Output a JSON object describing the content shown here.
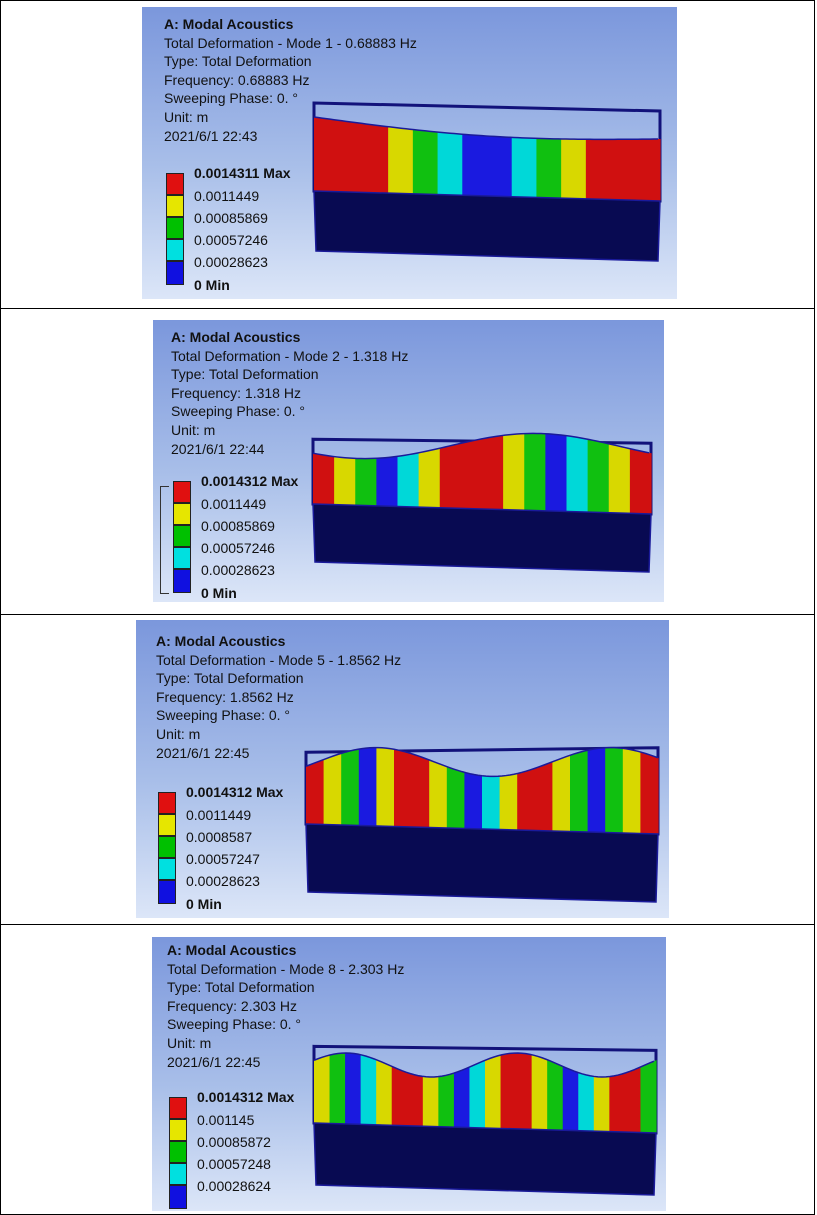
{
  "panels": [
    {
      "title": "A: Modal Acoustics",
      "subtitle": "Total Deformation - Mode 1 - 0.68883 Hz",
      "type_line": "Type: Total Deformation",
      "freq_line": "Frequency: 0.68883 Hz",
      "phase_line": "Sweeping Phase: 0. °",
      "unit_line": "Unit: m",
      "date_line": "2021/6/1 22:43",
      "legend": {
        "max_label": "0.0014311 Max",
        "values": [
          "0.0011449",
          "0.00085869",
          "0.00057246",
          "0.00028623"
        ],
        "min_label": "0 Min"
      },
      "colors": [
        "#e01010",
        "#e6e600",
        "#00c000",
        "#00e0e0",
        "#1010e0"
      ],
      "wave_stripes": [
        "#d01010",
        "#d01010",
        "#d01010",
        "#d8d800",
        "#10c010",
        "#00d8d8",
        "#1a1ae0",
        "#1a1ae0",
        "#00d8d8",
        "#10c010",
        "#d8d800",
        "#d01010",
        "#d01010",
        "#d01010"
      ]
    },
    {
      "title": "A: Modal Acoustics",
      "subtitle": "Total Deformation - Mode 2 - 1.318 Hz",
      "type_line": "Type: Total Deformation",
      "freq_line": "Frequency: 1.318 Hz",
      "phase_line": "Sweeping Phase: 0. °",
      "unit_line": "Unit: m",
      "date_line": "2021/6/1 22:44",
      "legend": {
        "max_label": "0.0014312 Max",
        "values": [
          "0.0011449",
          "0.00085869",
          "0.00057246",
          "0.00028623"
        ],
        "min_label": "0 Min"
      },
      "colors": [
        "#e01010",
        "#e6e600",
        "#00c000",
        "#00e0e0",
        "#1010e0"
      ],
      "wave_stripes": [
        "#d01010",
        "#d8d800",
        "#10c010",
        "#1a1ae0",
        "#00d8d8",
        "#d8d800",
        "#d01010",
        "#d01010",
        "#d01010",
        "#d8d800",
        "#10c010",
        "#1a1ae0",
        "#00d8d8",
        "#10c010",
        "#d8d800",
        "#d01010"
      ]
    },
    {
      "title": "A: Modal Acoustics",
      "subtitle": "Total Deformation - Mode 5 - 1.8562 Hz",
      "type_line": "Type: Total Deformation",
      "freq_line": "Frequency: 1.8562 Hz",
      "phase_line": "Sweeping Phase: 0. °",
      "unit_line": "Unit: m",
      "date_line": "2021/6/1 22:45",
      "legend": {
        "max_label": "0.0014312 Max",
        "values": [
          "0.0011449",
          "0.0008587",
          "0.00057247",
          "0.00028623"
        ],
        "min_label": "0 Min"
      },
      "colors": [
        "#e01010",
        "#e6e600",
        "#00c000",
        "#00e0e0",
        "#1010e0"
      ],
      "wave_stripes": [
        "#d01010",
        "#d8d800",
        "#10c010",
        "#1a1ae0",
        "#d8d800",
        "#d01010",
        "#d01010",
        "#d8d800",
        "#10c010",
        "#1a1ae0",
        "#00d8d8",
        "#d8d800",
        "#d01010",
        "#d01010",
        "#d8d800",
        "#10c010",
        "#1a1ae0",
        "#10c010",
        "#d8d800",
        "#d01010"
      ]
    },
    {
      "title": "A: Modal Acoustics",
      "subtitle": "Total Deformation - Mode 8 - 2.303 Hz",
      "type_line": "Type: Total Deformation",
      "freq_line": "Frequency: 2.303 Hz",
      "phase_line": "Sweeping Phase: 0. °",
      "unit_line": "Unit: m",
      "date_line": "2021/6/1 22:45",
      "legend": {
        "max_label": "0.0014312 Max",
        "values": [
          "0.001145",
          "0.00085872",
          "0.00057248",
          "0.00028624"
        ],
        "min_label": ""
      },
      "colors": [
        "#e01010",
        "#e6e600",
        "#00c000",
        "#00e0e0",
        "#1010e0"
      ],
      "wave_stripes": [
        "#d8d800",
        "#10c010",
        "#1a1ae0",
        "#00d8d8",
        "#d8d800",
        "#d01010",
        "#d01010",
        "#d8d800",
        "#10c010",
        "#1a1ae0",
        "#00d8d8",
        "#d8d800",
        "#d01010",
        "#d01010",
        "#d8d800",
        "#10c010",
        "#1a1ae0",
        "#00d8d8",
        "#d8d800",
        "#d01010",
        "#d01010",
        "#10c010"
      ]
    }
  ]
}
